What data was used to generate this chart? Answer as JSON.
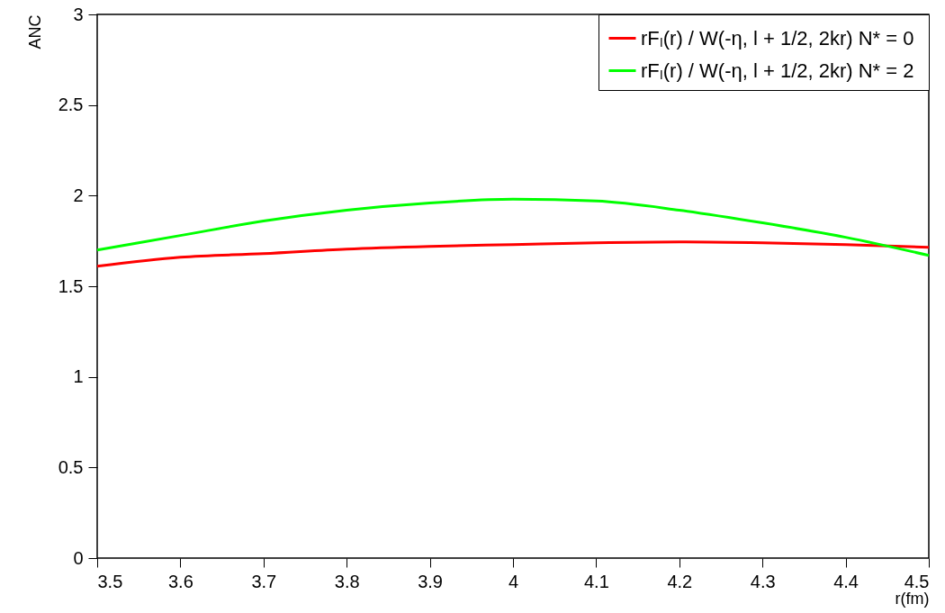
{
  "chart_data": {
    "type": "line",
    "xlabel": "r(fm)",
    "ylabel": "ANC",
    "x": [
      3.5,
      3.6,
      3.7,
      3.8,
      3.9,
      4.0,
      4.1,
      4.2,
      4.3,
      4.4,
      4.5
    ],
    "series": [
      {
        "name": "rFₗ(r) / W(-η, l + 1/2, 2kr)  N* = 0",
        "color": "#ff0000",
        "values": [
          1.61,
          1.66,
          1.68,
          1.705,
          1.72,
          1.73,
          1.74,
          1.745,
          1.74,
          1.73,
          1.715
        ]
      },
      {
        "name": "rFₗ(r) / W(-η, l + 1/2, 2kr) N* = 2",
        "color": "#00ff00",
        "values": [
          1.7,
          1.78,
          1.86,
          1.92,
          1.96,
          1.98,
          1.97,
          1.92,
          1.85,
          1.77,
          1.67
        ]
      }
    ],
    "xlim": [
      3.5,
      4.5
    ],
    "xticks": [
      3.5,
      3.6,
      3.7,
      3.8,
      3.9,
      4,
      4.1,
      4.2,
      4.3,
      4.4,
      4.5
    ],
    "ylim": [
      0,
      3
    ],
    "yticks": [
      0,
      0.5,
      1,
      1.5,
      2,
      2.5,
      3
    ],
    "legend": "top right",
    "marker": "none",
    "line_style": "solid"
  }
}
